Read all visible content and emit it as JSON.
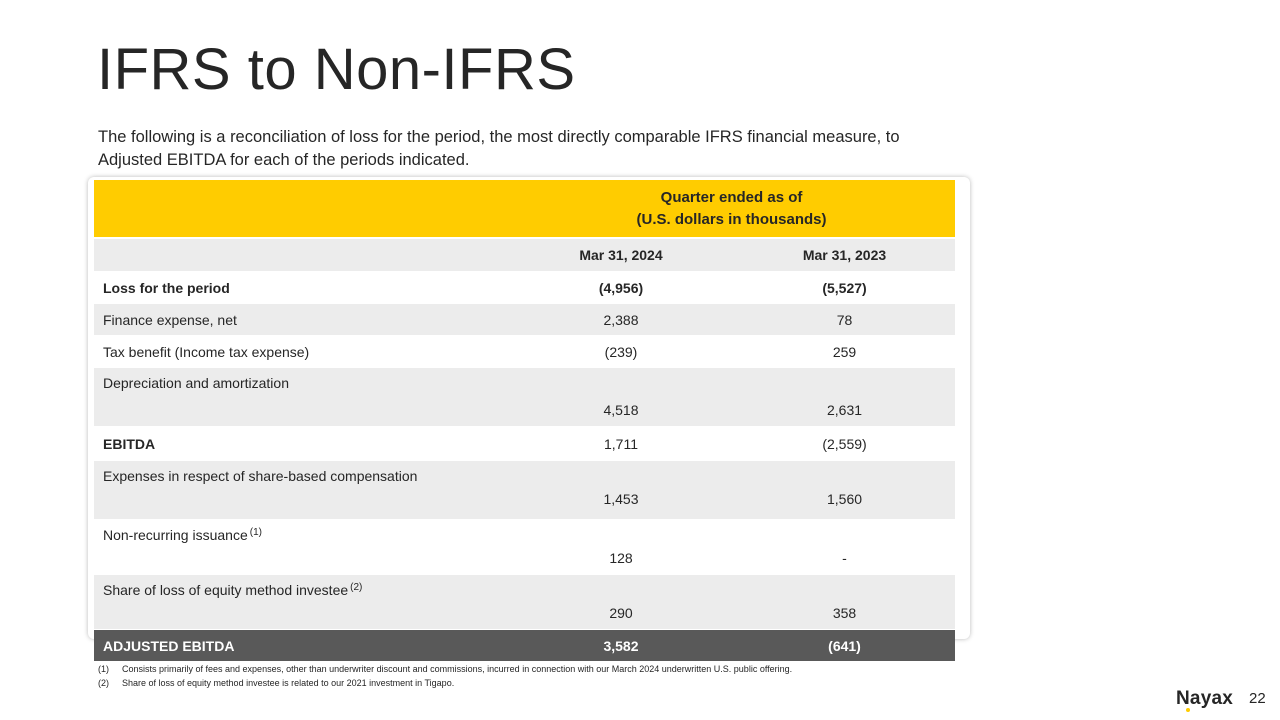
{
  "slide": {
    "title": "IFRS to Non-IFRS",
    "subtitle": "The following is a reconciliation of loss for the period, the most directly comparable IFRS financial measure, to Adjusted EBITDA for each of the periods indicated.",
    "page_number": "22",
    "brand": "Nayax"
  },
  "table": {
    "header_line1": "Quarter ended as of",
    "header_line2": "(U.S. dollars in thousands)",
    "col1": "Mar 31, 2024",
    "col2": "Mar 31, 2023",
    "rows": [
      {
        "label": "Loss for the period",
        "v1": "(4,956)",
        "v2": "(5,527)"
      },
      {
        "label": "Finance expense, net",
        "v1": "2,388",
        "v2": "78"
      },
      {
        "label": "Tax benefit (Income tax expense)",
        "v1": "(239)",
        "v2": "259"
      },
      {
        "label": "Depreciation and amortization",
        "v1": "4,518",
        "v2": "2,631"
      },
      {
        "label": "EBITDA",
        "v1": "1,711",
        "v2": "(2,559)"
      },
      {
        "label": "Expenses in respect of share-based compensation",
        "v1": "1,453",
        "v2": "1,560"
      },
      {
        "label": "Non-recurring issuance",
        "note": "(1)",
        "v1": "128",
        "v2": "-"
      },
      {
        "label": "Share of loss of equity method investee",
        "note": "(2)",
        "v1": "290",
        "v2": "358"
      },
      {
        "label": "ADJUSTED EBITDA",
        "v1": "3,582",
        "v2": "(641)"
      }
    ]
  },
  "footnotes": [
    {
      "num": "(1)",
      "text": "Consists primarily of fees and expenses, other than underwriter discount and commissions, incurred in connection with our March 2024 underwritten U.S. public offering."
    },
    {
      "num": "(2)",
      "text": "Share of loss of equity method investee is related to our 2021 investment in Tigapo."
    }
  ],
  "colors": {
    "accent_yellow": "#ffcc00",
    "row_grey": "#ececec",
    "total_row": "#595959",
    "text": "#262626"
  }
}
